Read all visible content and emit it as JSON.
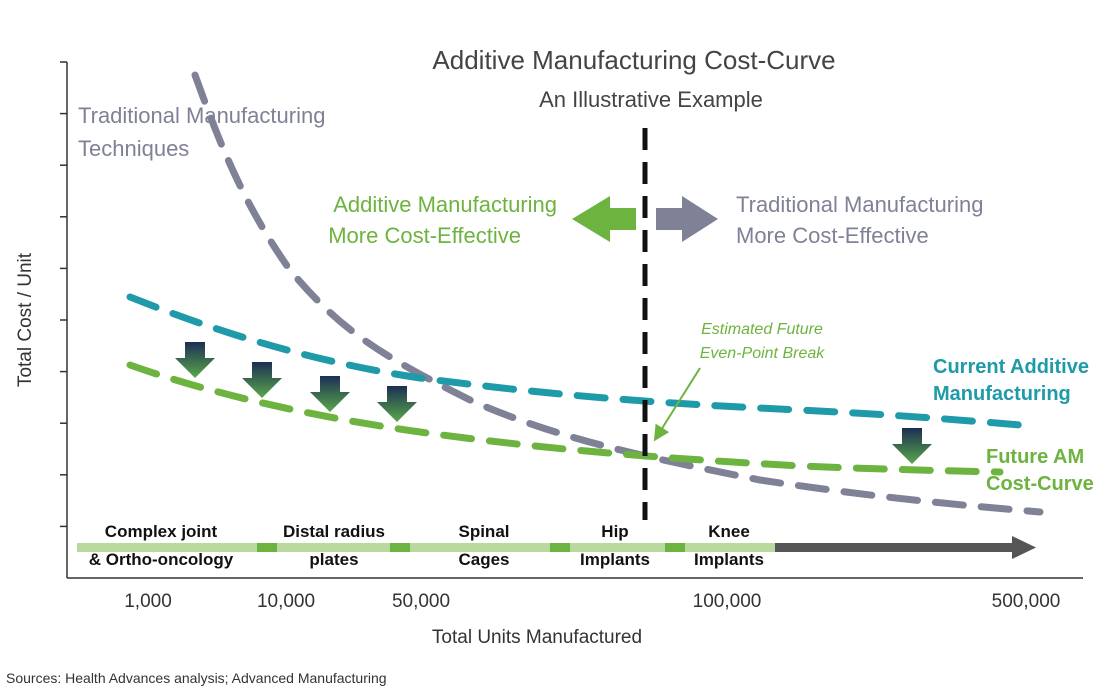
{
  "title": "Additive Manufacturing Cost-Curve",
  "subtitle": "An Illustrative Example",
  "y_axis_label": "Total Cost / Unit",
  "x_axis_label": "Total Units Manufactured",
  "x_labels": [
    "1,000",
    "10,000",
    "50,000",
    "100,000",
    "500,000"
  ],
  "curve_labels": {
    "traditional": [
      "Traditional Manufacturing",
      "Techniques"
    ],
    "current": [
      "Current Additive",
      "Manufacturing"
    ],
    "future": [
      "Future AM",
      "Cost-Curve"
    ]
  },
  "region_labels": {
    "left": [
      "Additive Manufacturing",
      "More Cost-Effective"
    ],
    "right": [
      "Traditional Manufacturing",
      "More Cost-Effective"
    ]
  },
  "annotation": [
    "Estimated Future",
    "Even-Point Break"
  ],
  "segments": [
    [
      "Complex joint",
      "& Ortho-oncology"
    ],
    [
      "Distal radius",
      "plates"
    ],
    [
      "Spinal",
      "Cages"
    ],
    [
      "Hip",
      "Implants"
    ],
    [
      "Knee",
      "Implants"
    ]
  ],
  "source": "Sources: Health Advances analysis; Advanced Manufacturing"
}
